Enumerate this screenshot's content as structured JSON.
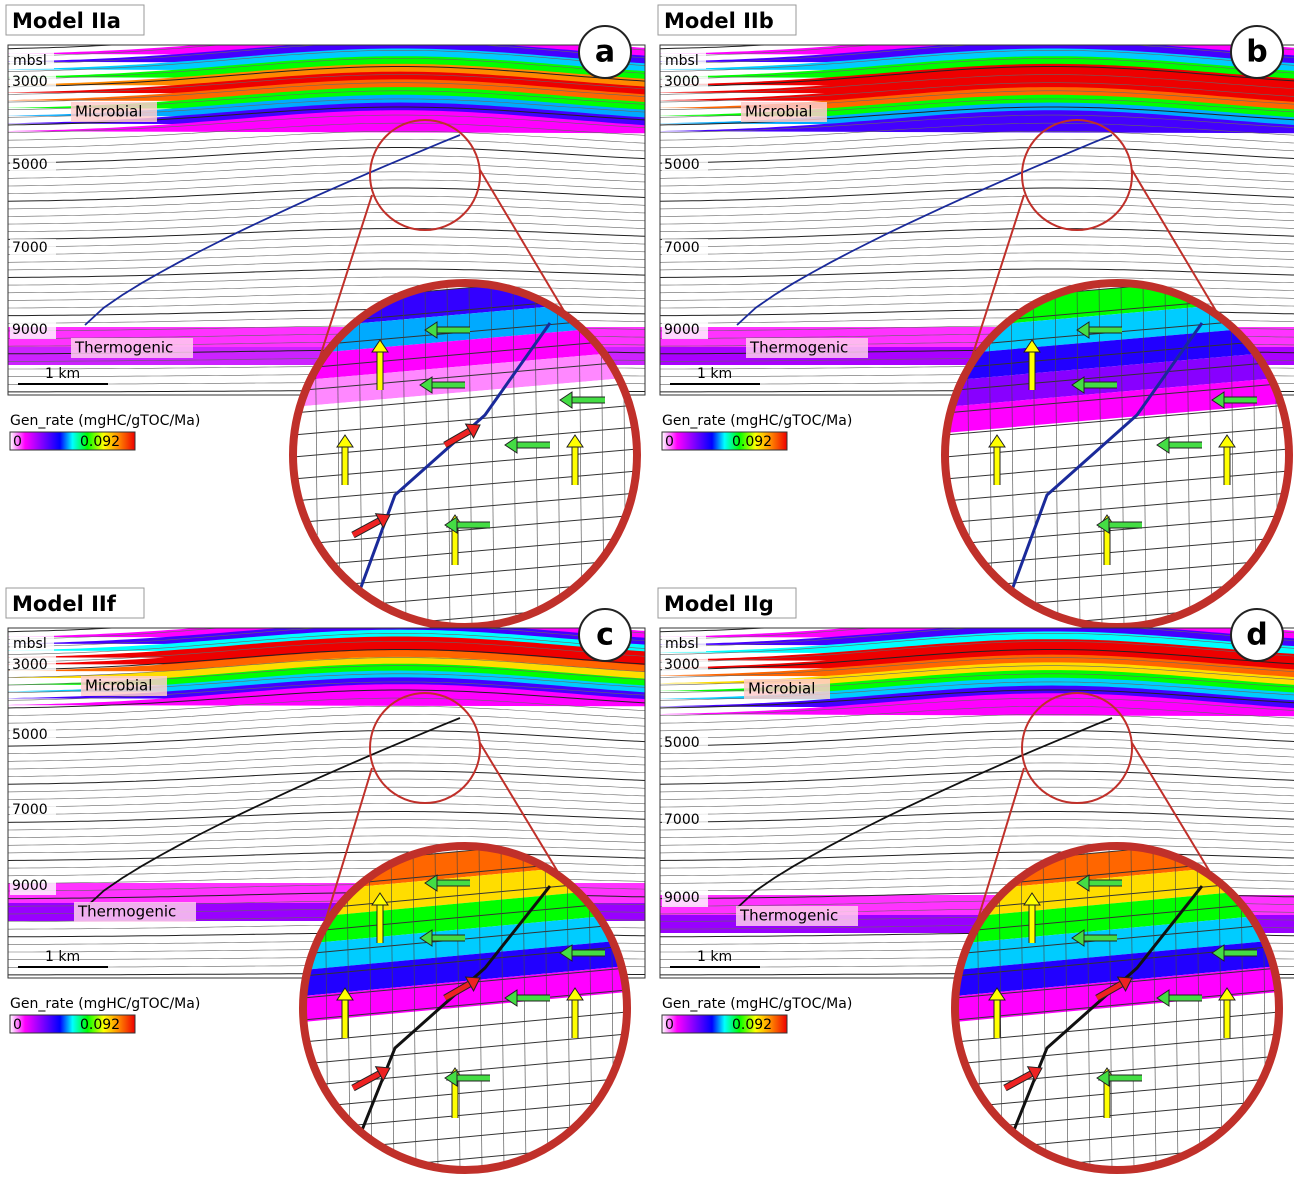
{
  "panels": [
    {
      "title": "Model IIa",
      "letter": "a",
      "depth_unit": "mbsl",
      "depths": [
        "3000",
        "5000",
        "7000",
        "9000"
      ],
      "upper_layer": "Microbial",
      "lower_layer": "Thermogenic",
      "scale_bar": "1 km",
      "legend_title": "Gen_rate (mgHC/gTOC/Ma)",
      "legend_min": "0",
      "legend_max": "0.092"
    },
    {
      "title": "Model IIb",
      "letter": "b",
      "depth_unit": "mbsl",
      "depths": [
        "3000",
        "5000",
        "7000",
        "9000"
      ],
      "upper_layer": "Microbial",
      "lower_layer": "Thermogenic",
      "scale_bar": "1 km",
      "legend_title": "Gen_rate (mgHC/gTOC/Ma)",
      "legend_min": "0",
      "legend_max": "0.092"
    },
    {
      "title": "Model IIf",
      "letter": "c",
      "depth_unit": "mbsl",
      "depths": [
        "3000",
        "5000",
        "7000",
        "9000"
      ],
      "upper_layer": "Microbial",
      "lower_layer": "Thermogenic",
      "scale_bar": "1 km",
      "legend_title": "Gen_rate (mgHC/gTOC/Ma)",
      "legend_min": "0",
      "legend_max": "0.092"
    },
    {
      "title": "Model IIg",
      "letter": "d",
      "depth_unit": "mbsl",
      "depths": [
        "3000",
        "5000",
        "7000",
        "9000"
      ],
      "upper_layer": "Microbial",
      "lower_layer": "Thermogenic",
      "scale_bar": "1 km",
      "legend_title": "Gen_rate (mgHC/gTOC/Ma)",
      "legend_min": "0",
      "legend_max": "0.092"
    }
  ]
}
